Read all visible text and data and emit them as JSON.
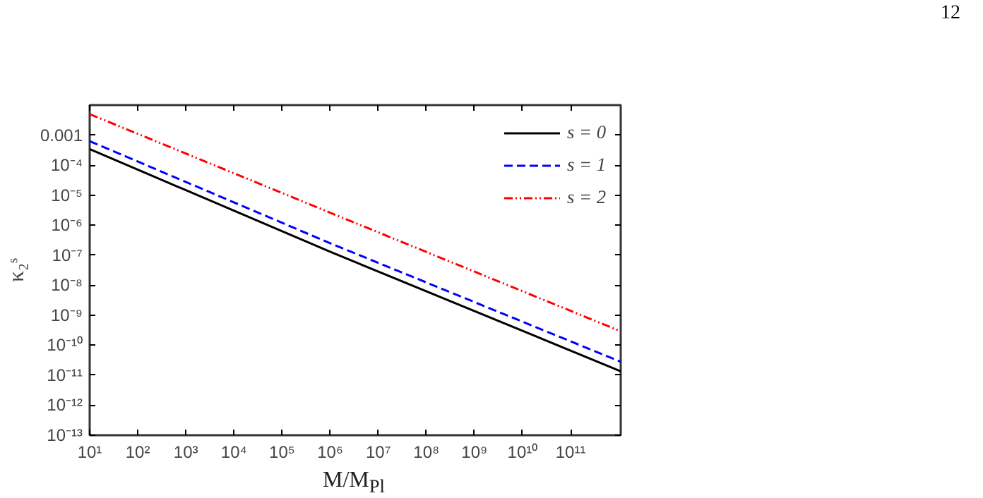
{
  "chart_data": {
    "type": "line",
    "xlabel": "M/M$_{Pl}$",
    "ylabel": "κ₂ˢ",
    "annotations": [
      "12"
    ],
    "log": "xy",
    "xlim": [
      10,
      1100000000000.0
    ],
    "ylim": [
      1e-13,
      0.01
    ],
    "xticks": [
      {
        "value": 10,
        "label": "10¹"
      },
      {
        "value": 100,
        "label": "10²"
      },
      {
        "value": 1000,
        "label": "10³"
      },
      {
        "value": 10000,
        "label": "10⁴"
      },
      {
        "value": 100000,
        "label": "10⁵"
      },
      {
        "value": 1000000,
        "label": "10⁶"
      },
      {
        "value": 10000000,
        "label": "10⁷"
      },
      {
        "value": 100000000,
        "label": "10⁸"
      },
      {
        "value": 1000000000,
        "label": "10⁹"
      },
      {
        "value": 10000000000,
        "label": "10¹⁰"
      },
      {
        "value": 100000000000,
        "label": "10¹¹"
      }
    ],
    "yticks": [
      {
        "value": 0.001,
        "label": "0.001"
      },
      {
        "value": 0.0001,
        "label": "10⁻⁴"
      },
      {
        "value": 1e-05,
        "label": "10⁻⁵"
      },
      {
        "value": 1e-06,
        "label": "10⁻⁶"
      },
      {
        "value": 1e-07,
        "label": "10⁻⁷"
      },
      {
        "value": 1e-08,
        "label": "10⁻⁸"
      },
      {
        "value": 1e-09,
        "label": "10⁻⁹"
      },
      {
        "value": 1e-10,
        "label": "10⁻¹⁰"
      },
      {
        "value": 1e-11,
        "label": "10⁻¹¹"
      },
      {
        "value": 1e-12,
        "label": "10⁻¹²"
      },
      {
        "value": 1e-13,
        "label": "10⁻¹³"
      }
    ],
    "grid": false,
    "legend": "top right",
    "marker": "none",
    "series": [
      {
        "name": "s = 0",
        "color": "#000000",
        "line_style": "solid",
        "x": [
          10,
          1000000,
          1100000000000.0
        ],
        "values": [
          0.00034,
          1.3e-07,
          1.35e-11
        ]
      },
      {
        "name": "s = 1",
        "color": "#0000ff",
        "line_style": "dashed",
        "x": [
          10,
          1000000,
          1100000000000.0
        ],
        "values": [
          0.00063,
          2.5e-07,
          2.8e-11
        ]
      },
      {
        "name": "s = 2",
        "color": "#ff0000",
        "line_style": "dashdot",
        "x": [
          10,
          1000000,
          1100000000000.0
        ],
        "values": [
          0.005,
          2.6e-06,
          2.9e-10
        ]
      }
    ]
  }
}
